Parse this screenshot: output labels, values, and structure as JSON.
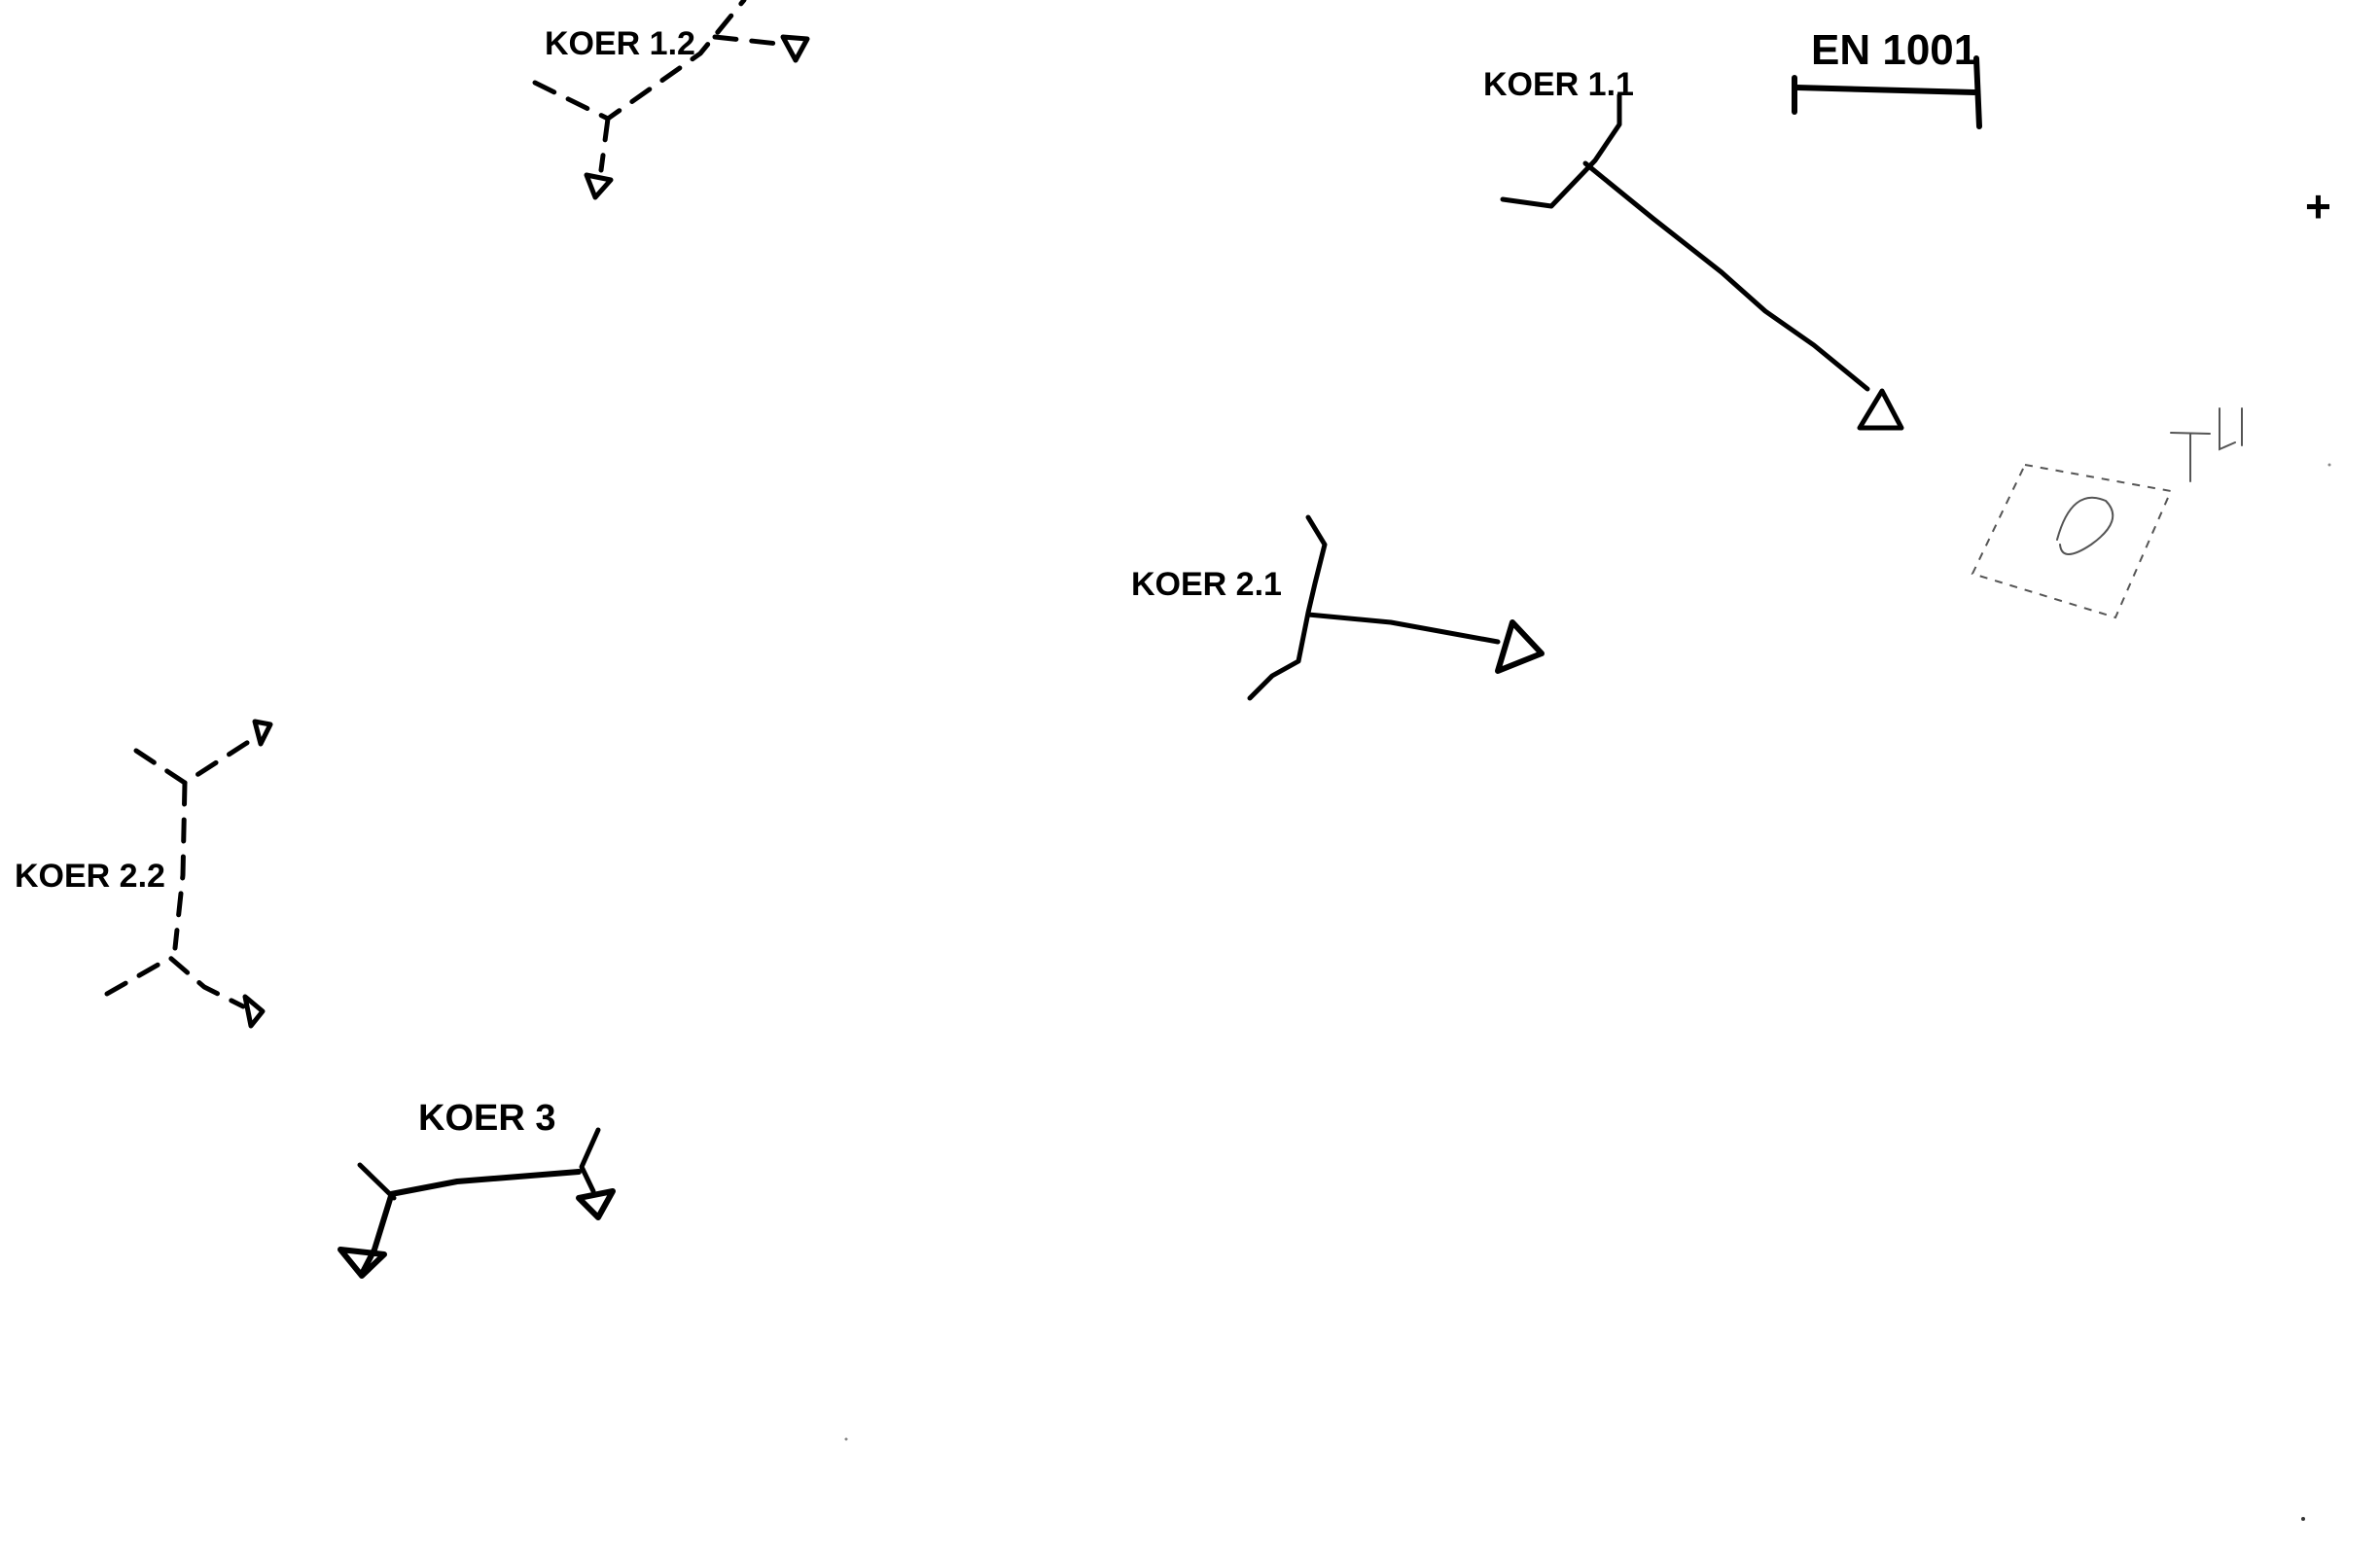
{
  "labels": {
    "koer_1_1": "KOER 1.1",
    "koer_1_2": "KOER 1.2",
    "koer_2_1": "KOER 2.1",
    "koer_2_2": "KOER 2.2",
    "koer_3": "KOER 3",
    "en_1001": "EN 1001",
    "th": "TH",
    "plus": "+"
  },
  "colors": {
    "ink": "#000000",
    "faint": "#555555",
    "background": "#ffffff"
  }
}
